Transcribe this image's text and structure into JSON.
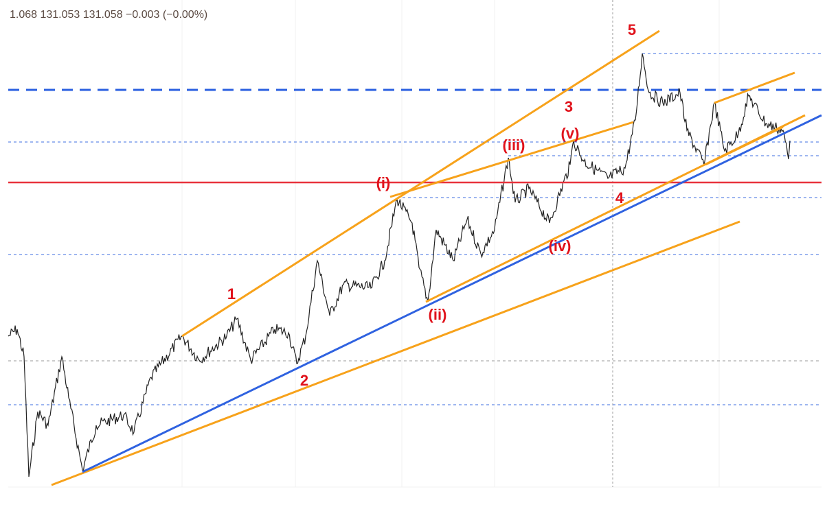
{
  "header": {
    "quote": "1.068 131.053 131.058 −0.003 (−0.00%)"
  },
  "wave_labels": [
    "5",
    "3",
    "(v)",
    "(iii)",
    "(i)",
    "1",
    "(ii)",
    "(iv)",
    "4",
    "2"
  ]
}
